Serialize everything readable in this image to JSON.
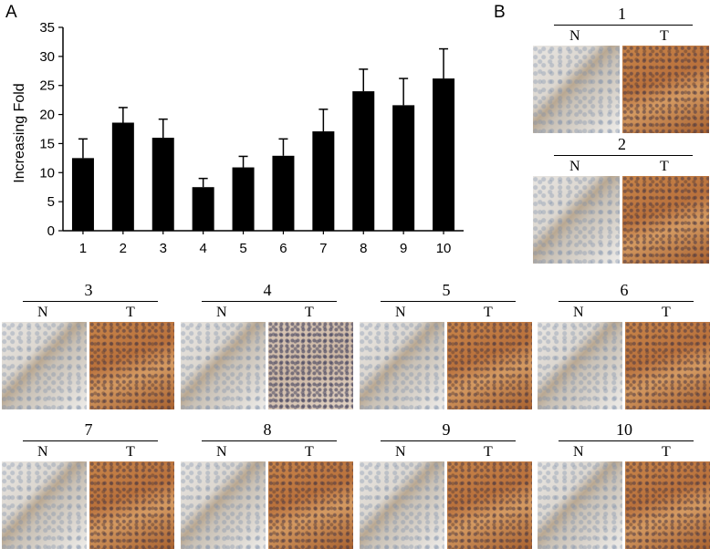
{
  "panel_a_label": "A",
  "panel_b_label": "B",
  "chart_data": {
    "type": "bar",
    "ylabel": "Increasing Fold",
    "xlabel": "",
    "ylim": [
      0,
      35
    ],
    "yticks": [
      0,
      5,
      10,
      15,
      20,
      25,
      30,
      35
    ],
    "categories": [
      "1",
      "2",
      "3",
      "4",
      "5",
      "6",
      "7",
      "8",
      "9",
      "10"
    ],
    "values": [
      12.5,
      18.6,
      16.0,
      7.5,
      10.9,
      12.9,
      17.1,
      24.0,
      21.6,
      26.2
    ],
    "errors": [
      3.3,
      2.6,
      3.2,
      1.5,
      1.9,
      2.9,
      3.8,
      3.8,
      4.6,
      5.1
    ],
    "bar_color": "#000000",
    "grid": false
  },
  "ihc_groups": [
    {
      "id": "1",
      "n_label": "N",
      "t_label": "T"
    },
    {
      "id": "2",
      "n_label": "N",
      "t_label": "T"
    },
    {
      "id": "3",
      "n_label": "N",
      "t_label": "T"
    },
    {
      "id": "4",
      "n_label": "N",
      "t_label": "T"
    },
    {
      "id": "5",
      "n_label": "N",
      "t_label": "T"
    },
    {
      "id": "6",
      "n_label": "N",
      "t_label": "T"
    },
    {
      "id": "7",
      "n_label": "N",
      "t_label": "T"
    },
    {
      "id": "8",
      "n_label": "N",
      "t_label": "T"
    },
    {
      "id": "9",
      "n_label": "N",
      "t_label": "T"
    },
    {
      "id": "10",
      "n_label": "N",
      "t_label": "T"
    }
  ]
}
